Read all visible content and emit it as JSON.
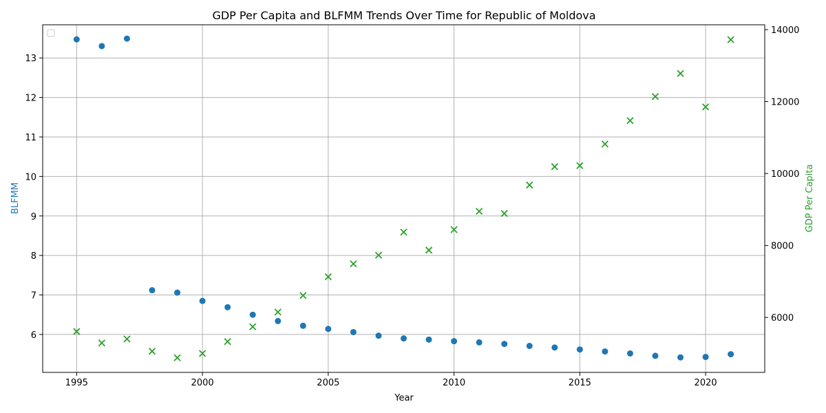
{
  "chart_data": {
    "type": "scatter",
    "title": "GDP Per Capita and BLFMM Trends Over Time for Republic of Moldova",
    "xlabel": "Year",
    "ylabel_left": "BLFMM",
    "ylabel_right": "GDP Per Capita",
    "xlim": [
      1993.65,
      2022.35
    ],
    "ylim_left": [
      5.04,
      13.84
    ],
    "ylim_right": [
      4473,
      14134
    ],
    "x_ticks": [
      1995,
      2000,
      2005,
      2010,
      2015,
      2020
    ],
    "y_left_ticks": [
      6,
      7,
      8,
      9,
      10,
      11,
      12,
      13
    ],
    "y_right_ticks": [
      6000,
      8000,
      10000,
      12000,
      14000
    ],
    "grid": true,
    "legend": "top-left (empty)",
    "colors": {
      "blfmm": "#1f77b4",
      "gdp": "#2ca02c"
    },
    "x": [
      1995,
      1996,
      1997,
      1998,
      1999,
      2000,
      2001,
      2002,
      2003,
      2004,
      2005,
      2006,
      2007,
      2008,
      2009,
      2010,
      2011,
      2012,
      2013,
      2014,
      2015,
      2016,
      2017,
      2018,
      2019,
      2020,
      2021
    ],
    "series": [
      {
        "name": "BLFMM",
        "axis": "left",
        "marker": "circle",
        "values": [
          13.47,
          13.3,
          13.49,
          7.12,
          7.06,
          6.85,
          6.69,
          6.5,
          6.34,
          6.22,
          6.14,
          6.06,
          5.97,
          5.9,
          5.87,
          5.83,
          5.8,
          5.76,
          5.71,
          5.67,
          5.62,
          5.57,
          5.52,
          5.46,
          5.42,
          5.43,
          5.5
        ]
      },
      {
        "name": "GDP Per Capita",
        "axis": "right",
        "marker": "x",
        "values": [
          5610,
          5290,
          5400,
          5060,
          4880,
          5000,
          5330,
          5740,
          6150,
          6610,
          7130,
          7490,
          7730,
          8370,
          7870,
          8440,
          8950,
          8890,
          9680,
          10190,
          10220,
          10820,
          11470,
          12140,
          12780,
          11850,
          13720
        ]
      }
    ]
  }
}
